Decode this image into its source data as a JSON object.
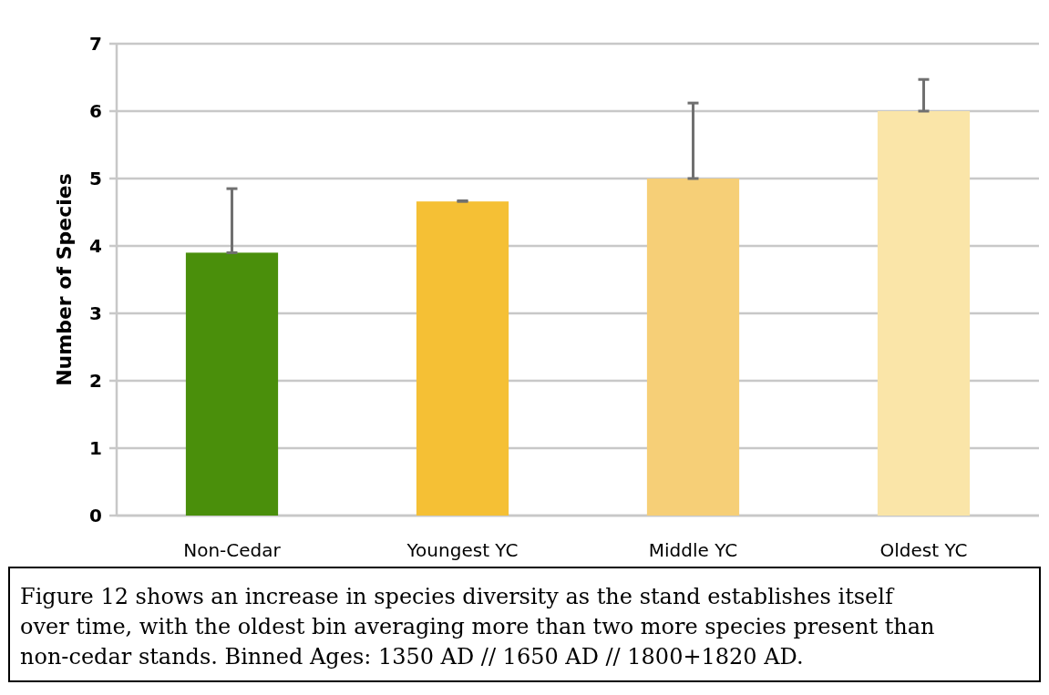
{
  "chart_data": {
    "type": "bar",
    "ylabel": "Number of Species",
    "categories": [
      "Non-Cedar",
      "Youngest YC",
      "Middle YC",
      "Oldest YC"
    ],
    "values": [
      3.9,
      4.66,
      5.0,
      6.0
    ],
    "colors": [
      "#4a8f0b",
      "#f5c035",
      "#f6cf77",
      "#fae5a8"
    ],
    "errors": [
      [
        3.9,
        4.85
      ],
      [
        4.66,
        4.67
      ],
      [
        5.0,
        6.12
      ],
      [
        6.0,
        6.47
      ]
    ],
    "ylim": [
      0,
      7
    ],
    "yticks": [
      0,
      1,
      2,
      3,
      4,
      5,
      6,
      7
    ],
    "grid": "y",
    "annotations": [
      "Figure 12 shows an increase in species diversity as the stand establishes itself over time, with the oldest bin averaging more than two more species present than non-cedar stands. Binned Ages: 1350 AD // 1650 AD // 1800+1820 AD."
    ]
  }
}
